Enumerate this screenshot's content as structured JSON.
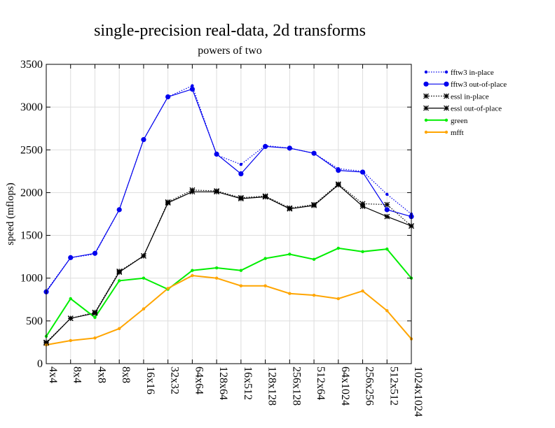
{
  "chart_data": {
    "type": "line",
    "title": "single-precision real-data, 2d transforms",
    "subtitle": "powers of two",
    "xlabel": "",
    "ylabel": "speed (mflops)",
    "ylim": [
      0,
      3500
    ],
    "yticks": [
      0,
      500,
      1000,
      1500,
      2000,
      2500,
      3000,
      3500
    ],
    "grid": true,
    "legend_position": "right",
    "categories": [
      "4x4",
      "8x4",
      "4x8",
      "8x8",
      "16x16",
      "32x32",
      "64x64",
      "128x64",
      "16x512",
      "128x128",
      "256x128",
      "512x64",
      "64x1024",
      "256x256",
      "512x512",
      "1024x1024"
    ],
    "series": [
      {
        "name": "fftw3 in-place",
        "color": "#0000ee",
        "line_style": "dotted",
        "marker": "small-dot",
        "values": [
          850,
          1240,
          1280,
          1800,
          2620,
          3120,
          3250,
          2440,
          2330,
          2550,
          2520,
          2460,
          2280,
          2250,
          1980,
          1750
        ]
      },
      {
        "name": "fftw3 out-of-place",
        "color": "#0000ee",
        "line_style": "solid",
        "marker": "dot",
        "values": [
          840,
          1240,
          1290,
          1800,
          2620,
          3120,
          3210,
          2450,
          2220,
          2540,
          2520,
          2460,
          2260,
          2240,
          1800,
          1720
        ]
      },
      {
        "name": "essl in-place",
        "color": "#000000",
        "line_style": "dotted",
        "marker": "star",
        "values": [
          250,
          530,
          600,
          1080,
          1260,
          1890,
          2030,
          2020,
          1940,
          1960,
          1820,
          1860,
          2100,
          1870,
          1860,
          1610
        ]
      },
      {
        "name": "essl out-of-place",
        "color": "#000000",
        "line_style": "solid",
        "marker": "star",
        "values": [
          240,
          530,
          590,
          1070,
          1260,
          1880,
          2010,
          2010,
          1930,
          1950,
          1810,
          1850,
          2090,
          1840,
          1720,
          1610
        ]
      },
      {
        "name": "green",
        "color": "#00ee00",
        "line_style": "solid",
        "marker": "small-dot",
        "values": [
          320,
          760,
          540,
          970,
          1000,
          870,
          1090,
          1120,
          1090,
          1230,
          1280,
          1220,
          1350,
          1310,
          1340,
          1000
        ]
      },
      {
        "name": "mfft",
        "color": "#ffa500",
        "line_style": "solid",
        "marker": "small-dot",
        "values": [
          220,
          270,
          300,
          410,
          640,
          880,
          1030,
          1000,
          910,
          910,
          820,
          800,
          760,
          850,
          620,
          290
        ]
      }
    ]
  }
}
